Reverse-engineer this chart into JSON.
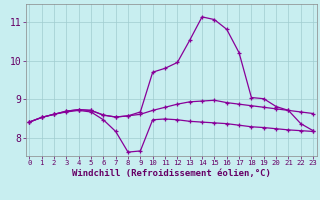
{
  "title": "",
  "xlabel": "Windchill (Refroidissement éolien,°C)",
  "background_color": "#c8eef0",
  "grid_color": "#a0ccd0",
  "line_color": "#880099",
  "x_ticks": [
    0,
    1,
    2,
    3,
    4,
    5,
    6,
    7,
    8,
    9,
    10,
    11,
    12,
    13,
    14,
    15,
    16,
    17,
    18,
    19,
    20,
    21,
    22,
    23
  ],
  "y_ticks": [
    8,
    9,
    10,
    11
  ],
  "ylim": [
    7.55,
    11.45
  ],
  "xlim": [
    -0.3,
    23.3
  ],
  "series": {
    "curve_bottom_x": [
      0,
      1,
      2,
      3,
      4,
      5,
      6,
      7,
      8,
      9,
      10,
      11,
      12,
      13,
      14,
      15,
      16,
      17,
      18,
      19,
      20,
      21,
      22,
      23
    ],
    "curve_bottom_y": [
      8.42,
      8.54,
      8.62,
      8.68,
      8.72,
      8.68,
      8.48,
      8.18,
      7.65,
      7.68,
      8.48,
      8.5,
      8.48,
      8.44,
      8.42,
      8.4,
      8.38,
      8.34,
      8.3,
      8.28,
      8.25,
      8.22,
      8.2,
      8.18
    ],
    "curve_mid_x": [
      0,
      1,
      2,
      3,
      4,
      5,
      6,
      7,
      8,
      9,
      10,
      11,
      12,
      13,
      14,
      15,
      16,
      17,
      18,
      19,
      20,
      21,
      22,
      23
    ],
    "curve_mid_y": [
      8.42,
      8.54,
      8.62,
      8.7,
      8.74,
      8.72,
      8.6,
      8.55,
      8.58,
      8.62,
      8.72,
      8.8,
      8.88,
      8.94,
      8.96,
      8.98,
      8.92,
      8.88,
      8.84,
      8.8,
      8.76,
      8.72,
      8.68,
      8.64
    ],
    "curve_top_x": [
      0,
      1,
      2,
      3,
      4,
      5,
      6,
      7,
      8,
      9,
      10,
      11,
      12,
      13,
      14,
      15,
      16,
      17,
      18,
      19,
      20,
      21,
      22,
      23
    ],
    "curve_top_y": [
      8.42,
      8.54,
      8.62,
      8.7,
      8.74,
      8.72,
      8.6,
      8.55,
      8.58,
      8.68,
      9.7,
      9.8,
      9.95,
      10.52,
      11.12,
      11.05,
      10.8,
      10.2,
      9.05,
      9.02,
      8.82,
      8.72,
      8.38,
      8.2
    ]
  }
}
